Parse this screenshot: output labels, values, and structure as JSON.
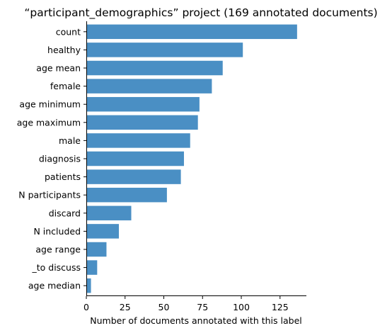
{
  "chart_data": {
    "type": "bar",
    "orientation": "horizontal",
    "title": "“participant_demographics” project (169 annotated documents)",
    "xlabel": "Number of documents annotated with this label",
    "ylabel": "",
    "xlim": [
      0,
      142
    ],
    "xticks": [
      0,
      25,
      50,
      75,
      100,
      125
    ],
    "grid": false,
    "bar_color": "#4a8fc4",
    "categories": [
      "count",
      "healthy",
      "age mean",
      "female",
      "age minimum",
      "age maximum",
      "male",
      "diagnosis",
      "patients",
      "N participants",
      "discard",
      "N included",
      "age range",
      "_to discuss",
      "age median"
    ],
    "values": [
      136,
      101,
      88,
      81,
      73,
      72,
      67,
      63,
      61,
      52,
      29,
      21,
      13,
      7,
      3
    ]
  }
}
